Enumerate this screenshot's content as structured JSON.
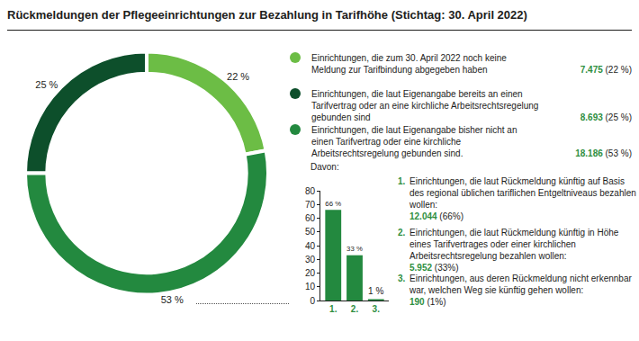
{
  "chart_data": [
    {
      "type": "pie",
      "title": "Rückmeldungen der Pflegeeinrichtungen zur Bezahlung in Tarifhöhe (Stichtag: 30. April 2022)",
      "categories": [
        "Einrichtungen, die zum 30. April 2022 noch keine Meldung zur Tarifbindung abgegeben haben",
        "Einrichtungen, die laut Eigenangabe bereits an einen Tarifvertrag oder an eine kirchliche Arbeitsrechtsregelung gebunden sind",
        "Einrichtungen, die laut Eigenangabe bisher nicht an einen Tarifvertrag oder eine kirchliche Arbeitsrechtsregelung gebunden sind."
      ],
      "values": [
        22,
        25,
        53
      ],
      "value_labels": [
        "22 %",
        "25 %",
        "53 %"
      ],
      "counts": [
        7475,
        8693,
        18186
      ],
      "count_labels": [
        "7.475",
        "8.693",
        "18.186"
      ],
      "legend_value_labels": [
        "(22 %)",
        "(25 %)",
        "(53 %)"
      ],
      "colors": [
        "#6cbd45",
        "#0d4f2b",
        "#23893f"
      ],
      "data_labels": true
    },
    {
      "type": "bar",
      "title": "Davon:",
      "categories": [
        "1.",
        "2.",
        "3."
      ],
      "values": [
        66,
        33,
        1
      ],
      "value_labels": [
        "66 %",
        "33 %",
        "1 %"
      ],
      "color": "#23893f",
      "ylim": [
        0,
        80
      ],
      "yticks": [
        0,
        10,
        20,
        30,
        40,
        50,
        60,
        70,
        80
      ],
      "grid": false,
      "data_labels": true,
      "annotations": [
        {
          "label": "1.",
          "text": "Einrichtungen, die laut Rückmeldung künftig auf Basis des regional üblichen tariflichen Entgeltniveaus bezahlen wollen:",
          "count": 12044,
          "count_label": "12.044",
          "share_label": "(66%)"
        },
        {
          "label": "2.",
          "text": "Einrichtungen, die laut Rückmeldung künftig in Höhe eines Tarifvertrages oder einer kirchlichen Arbeitsrechtsregelung bezahlen wollen:",
          "count": 5952,
          "count_label": "5.952",
          "share_label": "(33%)"
        },
        {
          "label": "3.",
          "text": "Einrichtungen, aus deren Rückmeldung nicht erkennbar war, welchen Weg sie künftig gehen wollen:",
          "count": 190,
          "count_label": "190",
          "share_label": "(1%)"
        }
      ]
    }
  ]
}
